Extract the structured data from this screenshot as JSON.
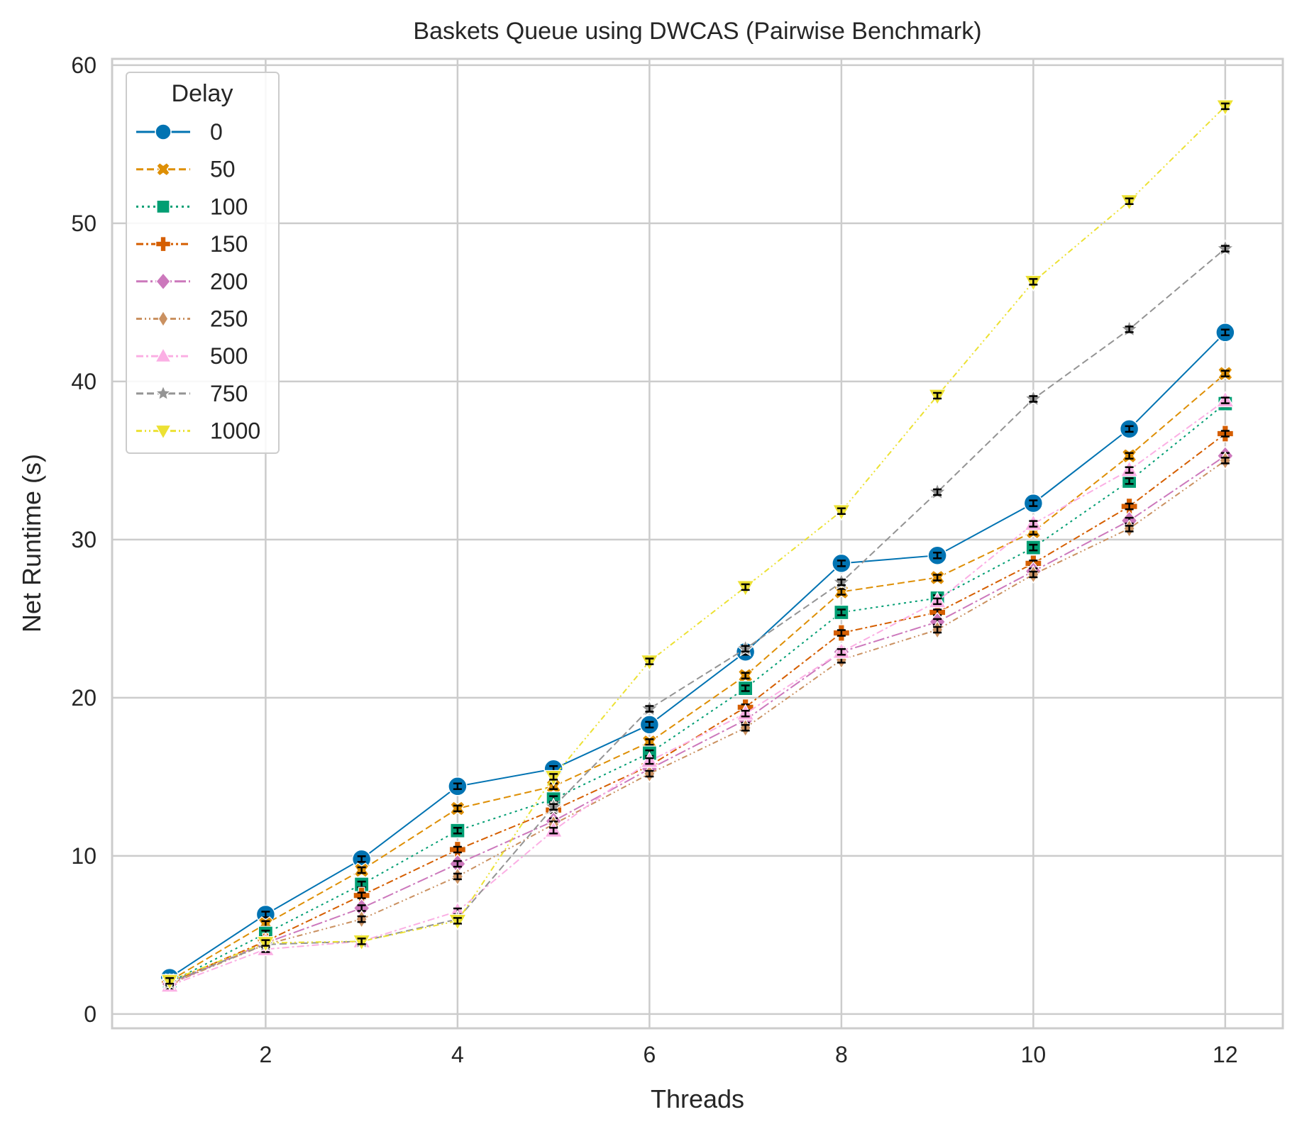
{
  "chart_data": {
    "type": "line",
    "title": "Baskets Queue using DWCAS (Pairwise Benchmark)",
    "xlabel": "Threads",
    "ylabel": "Net Runtime (s)",
    "xlim": [
      0.4,
      12.6
    ],
    "ylim": [
      -0.9,
      60.4
    ],
    "xticks": [
      2,
      4,
      6,
      8,
      10,
      12
    ],
    "yticks": [
      0,
      10,
      20,
      30,
      40,
      50,
      60
    ],
    "grid": true,
    "legend": {
      "title": "Delay",
      "placement": "top-left"
    },
    "x": [
      1,
      2,
      3,
      4,
      5,
      6,
      7,
      8,
      9,
      10,
      11,
      12
    ],
    "series": [
      {
        "name": "0",
        "color": "#0173b2",
        "marker": "circle",
        "dash": "solid",
        "values": [
          2.3,
          6.3,
          9.8,
          14.4,
          15.5,
          18.3,
          22.9,
          28.5,
          29.0,
          32.3,
          37.0,
          43.1
        ]
      },
      {
        "name": "50",
        "color": "#de8f05",
        "marker": "x-filled",
        "dash": "dashed",
        "values": [
          2.1,
          5.7,
          9.1,
          13.0,
          14.4,
          17.2,
          21.4,
          26.7,
          27.6,
          30.5,
          35.3,
          40.5
        ]
      },
      {
        "name": "100",
        "color": "#029e73",
        "marker": "square",
        "dash": "dotted",
        "values": [
          2.0,
          5.1,
          8.2,
          11.6,
          13.6,
          16.5,
          20.6,
          25.4,
          26.3,
          29.5,
          33.7,
          38.6
        ]
      },
      {
        "name": "150",
        "color": "#d55e00",
        "marker": "plus-filled",
        "dash": "dashdot",
        "values": [
          2.0,
          4.6,
          7.5,
          10.4,
          12.9,
          15.7,
          19.4,
          24.1,
          25.4,
          28.5,
          32.1,
          36.7
        ]
      },
      {
        "name": "200",
        "color": "#cc78bc",
        "marker": "diamond",
        "dash": "long-dashdot",
        "values": [
          1.9,
          4.5,
          6.7,
          9.5,
          12.2,
          15.5,
          18.6,
          22.9,
          24.8,
          28.0,
          31.2,
          35.3
        ]
      },
      {
        "name": "250",
        "color": "#ca9161",
        "marker": "thin-diamond",
        "dash": "dash-dot-dot",
        "values": [
          1.9,
          4.4,
          6.0,
          8.7,
          12.0,
          15.2,
          18.1,
          22.4,
          24.3,
          27.8,
          30.7,
          35.0
        ]
      },
      {
        "name": "500",
        "color": "#fbafe4",
        "marker": "triangle-up",
        "dash": "dashdot",
        "values": [
          1.8,
          4.1,
          4.6,
          6.5,
          11.6,
          16.0,
          19.0,
          22.9,
          26.1,
          31.0,
          34.4,
          38.8
        ]
      },
      {
        "name": "750",
        "color": "#949494",
        "marker": "star",
        "dash": "dashed",
        "values": [
          2.0,
          4.4,
          4.6,
          6.0,
          13.1,
          19.3,
          23.1,
          27.3,
          33.0,
          38.9,
          43.3,
          48.4
        ]
      },
      {
        "name": "1000",
        "color": "#ece133",
        "marker": "triangle-down",
        "dash": "dash-dot-dot",
        "values": [
          2.1,
          4.5,
          4.6,
          5.9,
          15.0,
          22.3,
          27.0,
          31.8,
          39.1,
          46.3,
          51.4,
          57.4
        ]
      }
    ]
  }
}
